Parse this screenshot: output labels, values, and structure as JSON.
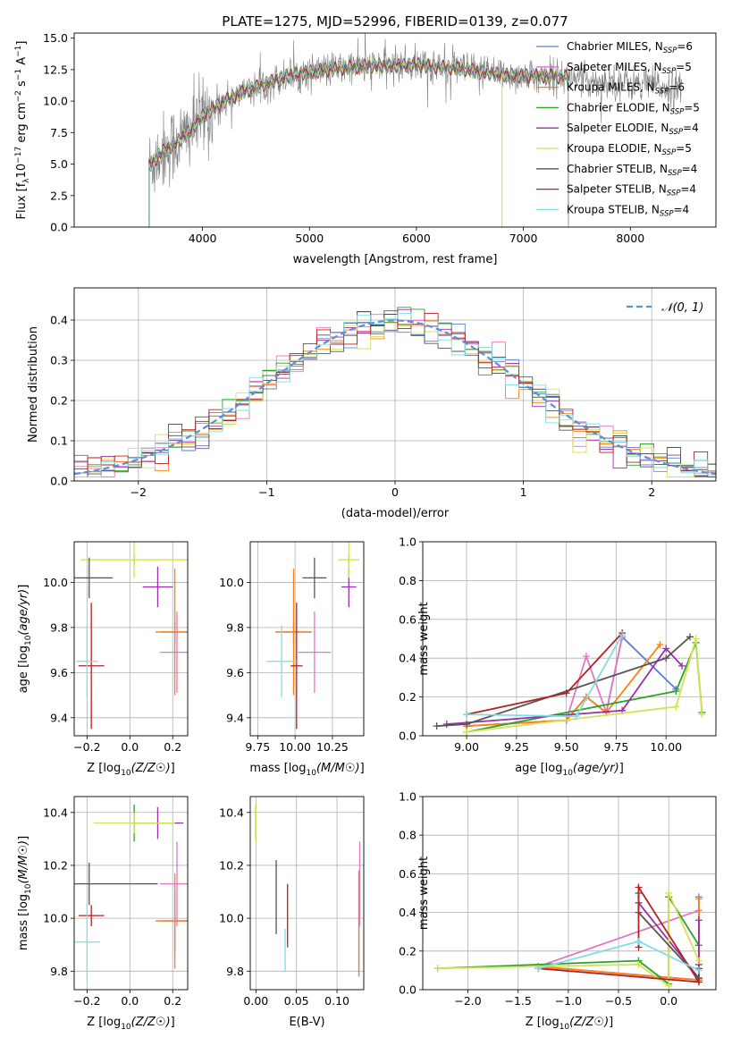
{
  "title": "PLATE=1275, MJD=52996, FIBERID=0139, z=0.077",
  "colors": {
    "Chabrier MILES": "#5b7fd6",
    "Salpeter MILES": "#e377c2",
    "Kroupa MILES": "#ff7f0e",
    "Chabrier ELODIE": "#2ca02c",
    "Salpeter ELODIE": "#9b2fae",
    "Kroupa ELODIE": "#d4e157",
    "Chabrier STELIB": "#555555",
    "Salpeter STELIB": "#b22222",
    "Kroupa STELIB": "#7fdde4",
    "gauss": "#5b8fd6",
    "grid": "#b0b0b0",
    "spectrum_data": "#808080"
  },
  "chart_data": [
    {
      "id": "spectrum",
      "type": "line",
      "xlabel": "wavelength [Angstrom, rest frame]",
      "ylabel_parts": {
        "pre": "Flux [f",
        "sub": "λ",
        "mid": "10",
        "sup1": "−17",
        "post": " erg cm",
        "sup2": "−2",
        "post2": " s",
        "sup3": "−1",
        "post3": " A",
        "sup4": "−1",
        "end": "]"
      },
      "xlim": [
        2800,
        8800
      ],
      "ylim": [
        0,
        15.4
      ],
      "xticks": [
        4000,
        5000,
        6000,
        7000,
        8000
      ],
      "yticks": [
        0.0,
        2.5,
        5.0,
        7.5,
        10.0,
        12.5,
        15.0
      ],
      "ytick_labels": [
        "0.0",
        "2.5",
        "5.0",
        "7.5",
        "10.0",
        "12.5",
        "15.0"
      ],
      "grid": false,
      "legend_position": "right",
      "legend": [
        {
          "model": "Chabrier MILES",
          "n": "6"
        },
        {
          "model": "Salpeter MILES",
          "n": "5"
        },
        {
          "model": "Kroupa MILES",
          "n": "6"
        },
        {
          "model": "Chabrier ELODIE",
          "n": "5"
        },
        {
          "model": "Salpeter ELODIE",
          "n": "4"
        },
        {
          "model": "Kroupa ELODIE",
          "n": "5"
        },
        {
          "model": "Chabrier STELIB",
          "n": "4"
        },
        {
          "model": "Salpeter STELIB",
          "n": "4"
        },
        {
          "model": "Kroupa STELIB",
          "n": "4"
        }
      ],
      "continuum_x": [
        3500,
        3600,
        3700,
        3800,
        3900,
        4000,
        4200,
        4400,
        4600,
        4800,
        5000,
        5200,
        5400,
        5600,
        5800,
        6000,
        6200,
        6400,
        6600,
        6800,
        7000,
        7200,
        7400,
        7600,
        7800,
        8000,
        8200,
        8400
      ],
      "continuum_y": [
        4.8,
        5.8,
        6.4,
        7.0,
        7.8,
        8.8,
        10.0,
        10.8,
        11.4,
        12.0,
        12.3,
        12.5,
        12.7,
        12.8,
        12.8,
        12.9,
        12.7,
        12.6,
        12.3,
        12.1,
        12.0,
        12.0,
        11.9,
        11.6,
        11.6,
        11.4,
        11.3,
        11.0
      ],
      "model_x_range": [
        3500,
        7420
      ]
    },
    {
      "id": "residuals",
      "type": "histogram",
      "xlabel": "(data-model)/error",
      "ylabel": "Normed distribution",
      "xlim": [
        -2.5,
        2.5
      ],
      "ylim": [
        0,
        0.48
      ],
      "xticks": [
        -2,
        -1,
        0,
        1,
        2
      ],
      "xtick_labels": [
        "−2",
        "−1",
        "0",
        "1",
        "2"
      ],
      "yticks": [
        0.0,
        0.1,
        0.2,
        0.3,
        0.4
      ],
      "ytick_labels": [
        "0.0",
        "0.1",
        "0.2",
        "0.3",
        "0.4"
      ],
      "grid": true,
      "legend": "𝒩(0, 1)",
      "legend_position": "top-right"
    },
    {
      "id": "age-vs-Z",
      "type": "scatter",
      "xlabel": "Z [log10(Z/Z☉)]",
      "ylabel": "age  [log10(age/yr)]",
      "xlim": [
        -0.26,
        0.27
      ],
      "ylim": [
        9.32,
        10.18
      ],
      "xticks": [
        -0.2,
        0.0,
        0.2
      ],
      "xtick_labels": [
        "−0.2",
        "0.0",
        "0.2"
      ],
      "yticks": [
        9.4,
        9.6,
        9.8,
        10.0
      ],
      "ytick_labels": [
        "9.4",
        "9.6",
        "9.8",
        "10.0"
      ],
      "grid": true,
      "points": [
        {
          "model": "Chabrier MILES",
          "x": 0.21,
          "y": 9.78,
          "xerr": 0.07,
          "yerr": 0.05
        },
        {
          "model": "Salpeter MILES",
          "x": 0.22,
          "y": 9.69,
          "xerr": 0.08,
          "yerr": 0.18
        },
        {
          "model": "Kroupa MILES",
          "x": 0.21,
          "y": 9.78,
          "xerr": 0.09,
          "yerr": 0.28
        },
        {
          "model": "Chabrier ELODIE",
          "x": 0.02,
          "y": 10.1,
          "xerr": 0.0,
          "yerr": 0.02
        },
        {
          "model": "Salpeter ELODIE",
          "x": 0.13,
          "y": 9.98,
          "xerr": 0.07,
          "yerr": 0.09
        },
        {
          "model": "Kroupa ELODIE",
          "x": 0.02,
          "y": 10.1,
          "xerr": 0.25,
          "yerr": 0.08
        },
        {
          "model": "Chabrier STELIB",
          "x": -0.19,
          "y": 10.02,
          "xerr": 0.11,
          "yerr": 0.09
        },
        {
          "model": "Salpeter STELIB",
          "x": -0.18,
          "y": 9.63,
          "xerr": 0.06,
          "yerr": 0.28
        },
        {
          "model": "Kroupa STELIB",
          "x": -0.2,
          "y": 9.65,
          "xerr": 0.05,
          "yerr": 0.16
        }
      ]
    },
    {
      "id": "age-vs-mass",
      "type": "scatter",
      "xlabel": "mass [log10(M/M☉)]",
      "ylabel": "",
      "xlim": [
        9.7,
        10.46
      ],
      "ylim": [
        9.32,
        10.18
      ],
      "xticks": [
        9.75,
        10.0,
        10.25
      ],
      "xtick_labels": [
        "9.75",
        "10.00",
        "10.25"
      ],
      "yticks": [
        9.4,
        9.6,
        9.8,
        10.0
      ],
      "ytick_labels": [
        "9.4",
        "9.6",
        "9.8",
        "10.0"
      ],
      "grid": true,
      "points": [
        {
          "model": "Chabrier MILES",
          "x": 9.99,
          "y": 9.78,
          "xerr": 0.12,
          "yerr": 0.05
        },
        {
          "model": "Salpeter MILES",
          "x": 10.13,
          "y": 9.69,
          "xerr": 0.11,
          "yerr": 0.18
        },
        {
          "model": "Kroupa MILES",
          "x": 9.99,
          "y": 9.78,
          "xerr": 0.12,
          "yerr": 0.28
        },
        {
          "model": "Chabrier ELODIE",
          "x": 10.36,
          "y": 10.1,
          "xerr": 0.0,
          "yerr": 0.02
        },
        {
          "model": "Salpeter ELODIE",
          "x": 10.36,
          "y": 9.98,
          "xerr": 0.05,
          "yerr": 0.09
        },
        {
          "model": "Kroupa ELODIE",
          "x": 10.36,
          "y": 10.1,
          "xerr": 0.07,
          "yerr": 0.08
        },
        {
          "model": "Chabrier STELIB",
          "x": 10.13,
          "y": 10.02,
          "xerr": 0.08,
          "yerr": 0.09
        },
        {
          "model": "Salpeter STELIB",
          "x": 10.01,
          "y": 9.63,
          "xerr": 0.04,
          "yerr": 0.28
        },
        {
          "model": "Kroupa STELIB",
          "x": 9.91,
          "y": 9.65,
          "xerr": 0.1,
          "yerr": 0.16
        }
      ]
    },
    {
      "id": "weight-vs-age",
      "type": "line",
      "xlabel": "age  [log10(age/yr)]",
      "ylabel": "mass weight",
      "xlim": [
        8.78,
        10.25
      ],
      "ylim": [
        0,
        1.0
      ],
      "xticks": [
        9.0,
        9.25,
        9.5,
        9.75,
        10.0
      ],
      "xtick_labels": [
        "9.00",
        "9.25",
        "9.50",
        "9.75",
        "10.00"
      ],
      "yticks": [
        0.0,
        0.2,
        0.4,
        0.6,
        0.8,
        1.0
      ],
      "ytick_labels": [
        "0.0",
        "0.2",
        "0.4",
        "0.6",
        "0.8",
        "1.0"
      ],
      "grid": true,
      "series": [
        {
          "model": "Chabrier MILES",
          "x": [
            9.0,
            9.5,
            9.6,
            9.7,
            9.78,
            10.05
          ],
          "y": [
            0.05,
            0.08,
            0.2,
            0.12,
            0.51,
            0.24
          ]
        },
        {
          "model": "Salpeter MILES",
          "x": [
            9.0,
            9.5,
            9.6,
            9.7,
            9.78
          ],
          "y": [
            0.05,
            0.08,
            0.41,
            0.12,
            0.51
          ]
        },
        {
          "model": "Kroupa MILES",
          "x": [
            9.0,
            9.5,
            9.6,
            9.7,
            9.97
          ],
          "y": [
            0.05,
            0.08,
            0.2,
            0.12,
            0.47
          ]
        },
        {
          "model": "Chabrier ELODIE",
          "x": [
            9.0,
            10.05,
            10.15,
            10.18
          ],
          "y": [
            0.02,
            0.23,
            0.48,
            0.12
          ]
        },
        {
          "model": "Salpeter ELODIE",
          "x": [
            8.9,
            9.78,
            10.0,
            10.08
          ],
          "y": [
            0.06,
            0.13,
            0.45,
            0.36
          ]
        },
        {
          "model": "Kroupa ELODIE",
          "x": [
            9.0,
            10.05,
            10.15,
            10.18
          ],
          "y": [
            0.02,
            0.15,
            0.5,
            0.11
          ]
        },
        {
          "model": "Chabrier STELIB",
          "x": [
            8.85,
            9.0,
            10.0,
            10.12
          ],
          "y": [
            0.05,
            0.06,
            0.4,
            0.51
          ]
        },
        {
          "model": "Salpeter STELIB",
          "x": [
            9.0,
            9.5,
            9.78
          ],
          "y": [
            0.11,
            0.22,
            0.53
          ]
        },
        {
          "model": "Kroupa STELIB",
          "x": [
            9.0,
            9.55,
            9.78
          ],
          "y": [
            0.11,
            0.1,
            0.52
          ]
        }
      ]
    },
    {
      "id": "mass-vs-Z",
      "type": "scatter",
      "xlabel": "Z [log10(Z/Z☉)]",
      "ylabel": "mass [log10(M/M☉)]",
      "xlim": [
        -0.26,
        0.27
      ],
      "ylim": [
        9.73,
        10.46
      ],
      "xticks": [
        -0.2,
        0.0,
        0.2
      ],
      "xtick_labels": [
        "−0.2",
        "0.0",
        "0.2"
      ],
      "yticks": [
        9.8,
        10.0,
        10.2,
        10.4
      ],
      "ytick_labels": [
        "9.8",
        "10.0",
        "10.2",
        "10.4"
      ],
      "grid": true,
      "points": [
        {
          "model": "Chabrier MILES",
          "x": 0.21,
          "y": 9.99,
          "xerr": 0.07,
          "yerr": 0.12
        },
        {
          "model": "Salpeter MILES",
          "x": 0.22,
          "y": 10.13,
          "xerr": 0.08,
          "yerr": 0.16
        },
        {
          "model": "Kroupa MILES",
          "x": 0.21,
          "y": 9.99,
          "xerr": 0.09,
          "yerr": 0.18
        },
        {
          "model": "Chabrier ELODIE",
          "x": 0.02,
          "y": 10.36,
          "xerr": 0.0,
          "yerr": 0.07
        },
        {
          "model": "Salpeter ELODIE",
          "x": 0.13,
          "y": 10.36,
          "xerr": 0.12,
          "yerr": 0.06
        },
        {
          "model": "Kroupa ELODIE",
          "x": 0.02,
          "y": 10.36,
          "xerr": 0.19,
          "yerr": 0.04
        },
        {
          "model": "Chabrier STELIB",
          "x": -0.19,
          "y": 10.13,
          "xerr": 0.32,
          "yerr": 0.08
        },
        {
          "model": "Salpeter STELIB",
          "x": -0.18,
          "y": 10.01,
          "xerr": 0.06,
          "yerr": 0.04
        },
        {
          "model": "Kroupa STELIB",
          "x": -0.2,
          "y": 9.91,
          "xerr": 0.06,
          "yerr": 0.15
        }
      ]
    },
    {
      "id": "mass-vs-EBV",
      "type": "scatter",
      "xlabel": "E(B-V)",
      "ylabel": "",
      "xlim": [
        -0.007,
        0.133
      ],
      "ylim": [
        9.73,
        10.46
      ],
      "xticks": [
        0.0,
        0.05,
        0.1
      ],
      "xtick_labels": [
        "0.00",
        "0.05",
        "0.10"
      ],
      "yticks": [
        9.8,
        10.0,
        10.2,
        10.4
      ],
      "ytick_labels": [
        "9.8",
        "10.0",
        "10.2",
        "10.4"
      ],
      "grid": true,
      "points": [
        {
          "model": "Chabrier MILES",
          "x": 0.127,
          "y": 9.98,
          "xerr": 0.0,
          "yerr": 0.2
        },
        {
          "model": "Salpeter MILES",
          "x": 0.128,
          "y": 10.13,
          "xerr": 0.0,
          "yerr": 0.16
        },
        {
          "model": "Kroupa MILES",
          "x": 0.127,
          "y": 9.98,
          "xerr": 0.0,
          "yerr": 0.2
        },
        {
          "model": "Chabrier ELODIE",
          "x": 0.0,
          "y": 10.36,
          "xerr": 0.0,
          "yerr": 0.06
        },
        {
          "model": "Salpeter ELODIE",
          "x": 0.0,
          "y": 10.38,
          "xerr": 0.0,
          "yerr": 0.05
        },
        {
          "model": "Kroupa ELODIE",
          "x": 0.0,
          "y": 10.36,
          "xerr": 0.0,
          "yerr": 0.07
        },
        {
          "model": "Chabrier STELIB",
          "x": 0.025,
          "y": 10.08,
          "xerr": 0.0,
          "yerr": 0.14
        },
        {
          "model": "Salpeter STELIB",
          "x": 0.039,
          "y": 10.01,
          "xerr": 0.0,
          "yerr": 0.12
        },
        {
          "model": "Kroupa STELIB",
          "x": 0.036,
          "y": 9.88,
          "xerr": 0.0,
          "yerr": 0.08
        }
      ]
    },
    {
      "id": "weight-vs-Z",
      "type": "line",
      "xlabel": "Z [log10(Z/Z☉)]",
      "ylabel": "mass weight",
      "xlim": [
        -2.45,
        0.47
      ],
      "ylim": [
        0,
        1.0
      ],
      "xticks": [
        -2.0,
        -1.5,
        -1.0,
        -0.5,
        0.0
      ],
      "xtick_labels": [
        "−2.0",
        "−1.5",
        "−1.0",
        "−0.5",
        "0.0"
      ],
      "yticks": [
        0.0,
        0.2,
        0.4,
        0.6,
        0.8,
        1.0
      ],
      "ytick_labels": [
        "0.0",
        "0.2",
        "0.4",
        "0.6",
        "0.8",
        "1.0"
      ],
      "grid": true,
      "series": [
        {
          "model": "Chabrier MILES",
          "x": [
            -1.3,
            0.3,
            0.3,
            0.3
          ],
          "y": [
            0.12,
            0.05,
            0.48,
            0.11
          ]
        },
        {
          "model": "Salpeter MILES",
          "x": [
            -1.3,
            0.3,
            0.3
          ],
          "y": [
            0.12,
            0.41,
            0.05
          ]
        },
        {
          "model": "Kroupa MILES",
          "x": [
            -1.3,
            0.3,
            0.3,
            0.3
          ],
          "y": [
            0.12,
            0.05,
            0.47,
            0.11
          ]
        },
        {
          "model": "Chabrier ELODIE",
          "x": [
            -2.3,
            -0.3,
            0.0,
            0.0,
            0.3
          ],
          "y": [
            0.11,
            0.15,
            0.03,
            0.48,
            0.23
          ]
        },
        {
          "model": "Salpeter ELODIE",
          "x": [
            -0.3,
            0.3,
            0.3,
            0.3
          ],
          "y": [
            0.45,
            0.06,
            0.36,
            0.13
          ]
        },
        {
          "model": "Kroupa ELODIE",
          "x": [
            -2.3,
            -0.3,
            0.0,
            0.0,
            0.3
          ],
          "y": [
            0.11,
            0.13,
            0.02,
            0.5,
            0.15
          ]
        },
        {
          "model": "Chabrier STELIB",
          "x": [
            -0.3,
            -0.3,
            0.3,
            0.3
          ],
          "y": [
            0.5,
            0.4,
            0.06,
            0.11
          ]
        },
        {
          "model": "Salpeter STELIB",
          "x": [
            -1.3,
            0.3,
            -0.3,
            -0.3
          ],
          "y": [
            0.11,
            0.04,
            0.53,
            0.22
          ]
        },
        {
          "model": "Kroupa STELIB",
          "x": [
            -1.3,
            -0.3,
            0.3
          ],
          "y": [
            0.11,
            0.25,
            0.1
          ]
        }
      ]
    }
  ]
}
